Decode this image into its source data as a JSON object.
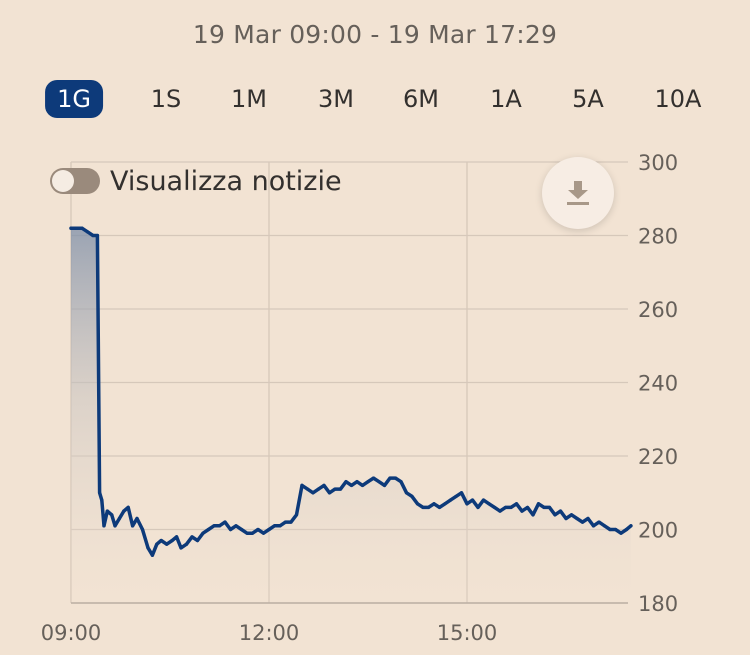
{
  "header": {
    "date_range": "19 Mar 09:00 - 19 Mar 17:29"
  },
  "ranges": [
    {
      "label": "1G",
      "active": true
    },
    {
      "label": "1S",
      "active": false
    },
    {
      "label": "1M",
      "active": false
    },
    {
      "label": "3M",
      "active": false
    },
    {
      "label": "6M",
      "active": false
    },
    {
      "label": "1A",
      "active": false
    },
    {
      "label": "5A",
      "active": false
    },
    {
      "label": "10A",
      "active": false
    }
  ],
  "news_toggle": {
    "label": "Visualizza notizie",
    "on": false
  },
  "download": {
    "icon": "download-icon"
  },
  "colors": {
    "line": "#0d3a7a",
    "active_range": "#0d3a7a",
    "background": "#f2e3d3",
    "grid": "#d6c8ba"
  },
  "chart_data": {
    "type": "line",
    "title": "",
    "xlabel": "",
    "ylabel": "",
    "x_ticks": [
      "09:00",
      "12:00",
      "15:00"
    ],
    "y_ticks": [
      180,
      200,
      220,
      240,
      260,
      280,
      300
    ],
    "ylim": [
      180,
      300
    ],
    "xlim": [
      "09:00",
      "17:29"
    ],
    "grid": true,
    "legend": "none",
    "series": [
      {
        "x": [
          "09:00",
          "09:05",
          "09:10",
          "09:15",
          "09:20",
          "09:24",
          "09:26",
          "09:28",
          "09:30",
          "09:33",
          "09:37",
          "09:40",
          "09:44",
          "09:48",
          "09:52",
          "09:56",
          "10:00",
          "10:05",
          "10:10",
          "10:14",
          "10:18",
          "10:22",
          "10:27",
          "10:32",
          "10:36",
          "10:40",
          "10:45",
          "10:50",
          "10:55",
          "11:00",
          "11:05",
          "11:10",
          "11:15",
          "11:20",
          "11:25",
          "11:30",
          "11:35",
          "11:40",
          "11:45",
          "11:50",
          "11:55",
          "12:00",
          "12:05",
          "12:10",
          "12:15",
          "12:20",
          "12:25",
          "12:30",
          "12:35",
          "12:40",
          "12:45",
          "12:50",
          "12:55",
          "13:00",
          "13:05",
          "13:10",
          "13:15",
          "13:20",
          "13:25",
          "13:30",
          "13:35",
          "13:40",
          "13:45",
          "13:50",
          "13:55",
          "14:00",
          "14:05",
          "14:10",
          "14:15",
          "14:20",
          "14:25",
          "14:30",
          "14:35",
          "14:40",
          "14:45",
          "14:50",
          "14:55",
          "15:00",
          "15:05",
          "15:10",
          "15:15",
          "15:20",
          "15:25",
          "15:30",
          "15:35",
          "15:40",
          "15:45",
          "15:50",
          "15:55",
          "16:00",
          "16:05",
          "16:10",
          "16:15",
          "16:20",
          "16:25",
          "16:30",
          "16:35",
          "16:40",
          "16:45",
          "16:50",
          "16:55",
          "17:00",
          "17:05",
          "17:10",
          "17:15",
          "17:20",
          "17:25",
          "17:29"
        ],
        "values": [
          282,
          282,
          282,
          281,
          280,
          280,
          210,
          208,
          201,
          205,
          204,
          201,
          203,
          205,
          206,
          201,
          203,
          200,
          195,
          193,
          196,
          197,
          196,
          197,
          198,
          195,
          196,
          198,
          197,
          199,
          200,
          201,
          201,
          202,
          200,
          201,
          200,
          199,
          199,
          200,
          199,
          200,
          201,
          201,
          202,
          202,
          204,
          212,
          211,
          210,
          211,
          212,
          210,
          211,
          211,
          213,
          212,
          213,
          212,
          213,
          214,
          213,
          212,
          214,
          214,
          213,
          210,
          209,
          207,
          206,
          206,
          207,
          206,
          207,
          208,
          209,
          210,
          207,
          208,
          206,
          208,
          207,
          206,
          205,
          206,
          206,
          207,
          205,
          206,
          204,
          207,
          206,
          206,
          204,
          205,
          203,
          204,
          203,
          202,
          203,
          201,
          202,
          201,
          200,
          200,
          199,
          200,
          201
        ]
      }
    ]
  }
}
